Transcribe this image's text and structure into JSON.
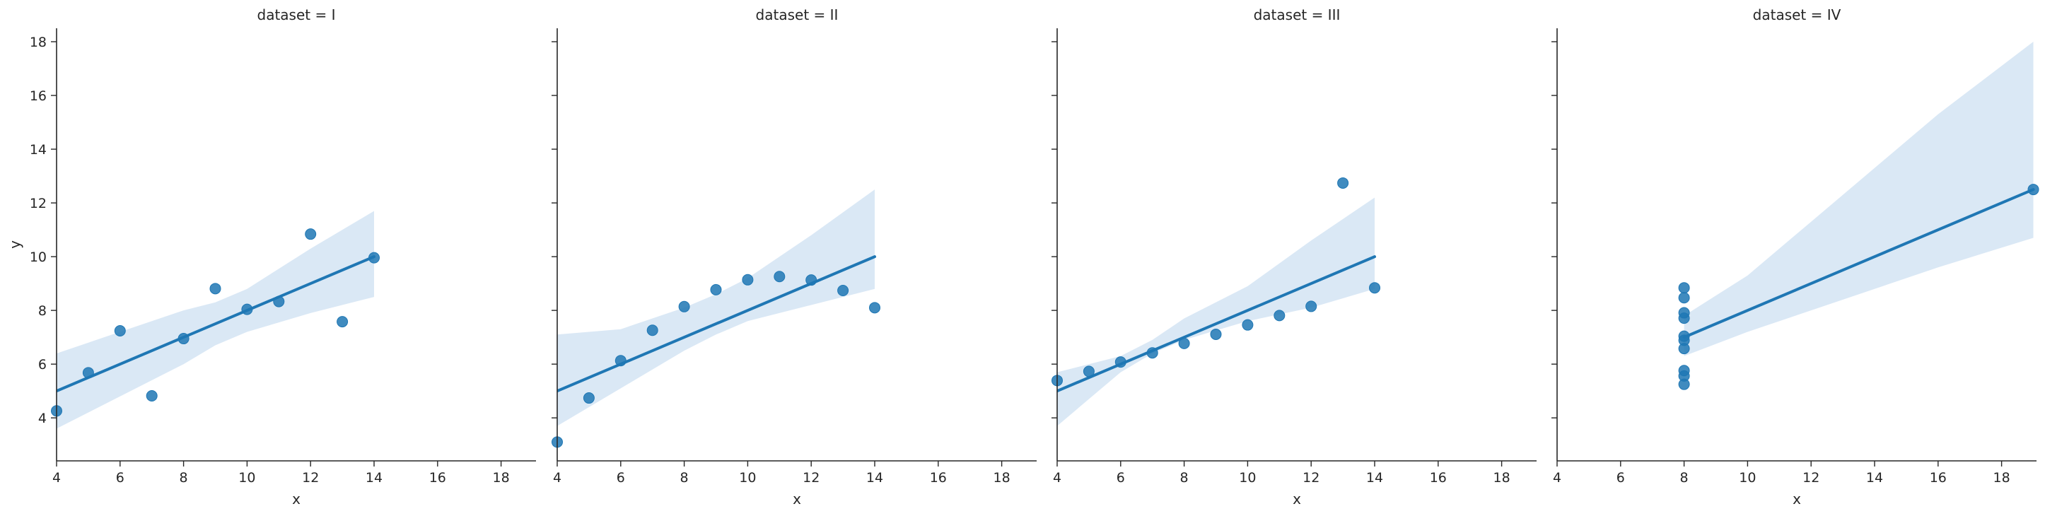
{
  "chart_data": [
    {
      "type": "scatter",
      "title": "dataset = I",
      "xlabel": "x",
      "ylabel": "y",
      "xlim": [
        4,
        19.1
      ],
      "ylim": [
        2.4,
        18.5
      ],
      "xticks": [
        "4",
        "6",
        "8",
        "10",
        "12",
        "14",
        "16",
        "18"
      ],
      "yticks": [
        "4",
        "6",
        "8",
        "10",
        "12",
        "14",
        "16",
        "18"
      ],
      "points": [
        [
          4,
          4.26
        ],
        [
          5,
          5.68
        ],
        [
          6,
          7.24
        ],
        [
          7,
          4.82
        ],
        [
          8,
          6.95
        ],
        [
          9,
          8.81
        ],
        [
          10,
          8.04
        ],
        [
          11,
          8.33
        ],
        [
          12,
          10.84
        ],
        [
          13,
          7.58
        ],
        [
          14,
          9.96
        ]
      ],
      "fit_line": [
        [
          4,
          5.0
        ],
        [
          14,
          10.0
        ]
      ],
      "ci_band": [
        [
          4,
          3.6,
          6.4
        ],
        [
          6,
          4.8,
          7.2
        ],
        [
          8,
          6.0,
          8.0
        ],
        [
          9,
          6.7,
          8.3
        ],
        [
          10,
          7.2,
          8.8
        ],
        [
          12,
          7.9,
          10.3
        ],
        [
          14,
          8.5,
          11.7
        ]
      ]
    },
    {
      "type": "scatter",
      "title": "dataset = II",
      "xlabel": "x",
      "ylabel": "",
      "xlim": [
        4,
        19.1
      ],
      "ylim": [
        2.4,
        18.5
      ],
      "xticks": [
        "4",
        "6",
        "8",
        "10",
        "12",
        "14",
        "16",
        "18"
      ],
      "yticks": [],
      "points": [
        [
          4,
          3.1
        ],
        [
          5,
          4.74
        ],
        [
          6,
          6.13
        ],
        [
          7,
          7.26
        ],
        [
          8,
          8.14
        ],
        [
          9,
          8.77
        ],
        [
          10,
          9.14
        ],
        [
          11,
          9.26
        ],
        [
          12,
          9.13
        ],
        [
          13,
          8.74
        ],
        [
          14,
          8.1
        ]
      ],
      "fit_line": [
        [
          4,
          5.0
        ],
        [
          14,
          10.0
        ]
      ],
      "ci_band": [
        [
          4,
          3.7,
          7.1
        ],
        [
          6,
          5.1,
          7.3
        ],
        [
          8,
          6.5,
          8.1
        ],
        [
          9,
          7.1,
          8.6
        ],
        [
          10,
          7.6,
          9.2
        ],
        [
          12,
          8.2,
          10.8
        ],
        [
          14,
          8.8,
          12.5
        ]
      ]
    },
    {
      "type": "scatter",
      "title": "dataset = III",
      "xlabel": "x",
      "ylabel": "",
      "xlim": [
        4,
        19.1
      ],
      "ylim": [
        2.4,
        18.5
      ],
      "xticks": [
        "4",
        "6",
        "8",
        "10",
        "12",
        "14",
        "16",
        "18"
      ],
      "yticks": [],
      "points": [
        [
          4,
          5.39
        ],
        [
          5,
          5.73
        ],
        [
          6,
          6.08
        ],
        [
          7,
          6.42
        ],
        [
          8,
          6.77
        ],
        [
          9,
          7.11
        ],
        [
          10,
          7.46
        ],
        [
          11,
          7.81
        ],
        [
          12,
          8.15
        ],
        [
          13,
          12.74
        ],
        [
          14,
          8.84
        ]
      ],
      "fit_line": [
        [
          4,
          5.0
        ],
        [
          14,
          10.0
        ]
      ],
      "ci_band": [
        [
          4,
          3.7,
          5.7
        ],
        [
          6,
          5.7,
          6.3
        ],
        [
          7,
          6.4,
          6.9
        ],
        [
          8,
          6.9,
          7.7
        ],
        [
          10,
          7.6,
          8.9
        ],
        [
          12,
          8.1,
          10.6
        ],
        [
          14,
          8.8,
          12.2
        ]
      ]
    },
    {
      "type": "scatter",
      "title": "dataset = IV",
      "xlabel": "x",
      "ylabel": "",
      "xlim": [
        4,
        19.1
      ],
      "ylim": [
        2.4,
        18.5
      ],
      "xticks": [
        "4",
        "6",
        "8",
        "10",
        "12",
        "14",
        "16",
        "18"
      ],
      "yticks": [],
      "points": [
        [
          8,
          6.58
        ],
        [
          8,
          5.76
        ],
        [
          8,
          7.71
        ],
        [
          8,
          8.84
        ],
        [
          8,
          8.47
        ],
        [
          8,
          7.04
        ],
        [
          8,
          5.25
        ],
        [
          19,
          12.5
        ],
        [
          8,
          5.56
        ],
        [
          8,
          7.91
        ],
        [
          8,
          6.89
        ]
      ],
      "fit_line": [
        [
          8,
          7.0
        ],
        [
          19,
          12.5
        ]
      ],
      "ci_band": [
        [
          8,
          6.3,
          7.8
        ],
        [
          10,
          7.2,
          9.3
        ],
        [
          12,
          8.0,
          11.3
        ],
        [
          16,
          9.6,
          15.3
        ],
        [
          19,
          10.7,
          18.0
        ]
      ]
    }
  ],
  "colors": {
    "points": "#1f77b4",
    "line": "#1f77b4",
    "band": "#c6dbef"
  }
}
